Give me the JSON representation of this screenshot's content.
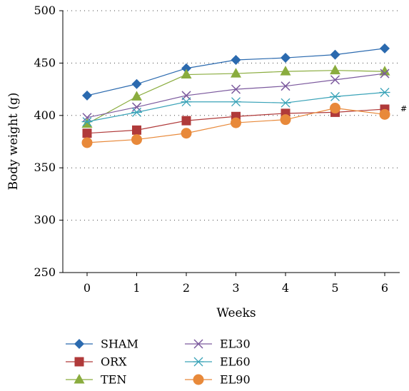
{
  "chart_data": {
    "type": "line",
    "xlabel": "Weeks",
    "ylabel": "Body weight (g)",
    "x": [
      0,
      1,
      2,
      3,
      4,
      5,
      6
    ],
    "ylim": [
      250,
      500
    ],
    "yticks": [
      250,
      300,
      350,
      400,
      450,
      500
    ],
    "grid": "dotted horizontal",
    "legend_position": "bottom",
    "annotation": "#",
    "series": [
      {
        "name": "SHAM",
        "color": "#2B6AAF",
        "marker": "diamond",
        "values": [
          419,
          430,
          445,
          453,
          455,
          458,
          464
        ]
      },
      {
        "name": "ORX",
        "color": "#B03A3A",
        "marker": "square",
        "values": [
          383,
          386,
          395,
          399,
          402,
          403,
          406
        ]
      },
      {
        "name": "TEN",
        "color": "#8AAC3E",
        "marker": "triangle",
        "values": [
          392,
          418,
          439,
          440,
          442,
          443,
          442
        ]
      },
      {
        "name": "EL30",
        "color": "#7C5A9E",
        "marker": "x",
        "values": [
          398,
          408,
          419,
          425,
          428,
          434,
          440
        ]
      },
      {
        "name": "EL60",
        "color": "#3AA3B8",
        "marker": "asterisk",
        "values": [
          394,
          403,
          413,
          413,
          412,
          418,
          422
        ]
      },
      {
        "name": "EL90",
        "color": "#E8893A",
        "marker": "circle",
        "values": [
          374,
          377,
          383,
          393,
          396,
          407,
          401
        ]
      }
    ]
  }
}
